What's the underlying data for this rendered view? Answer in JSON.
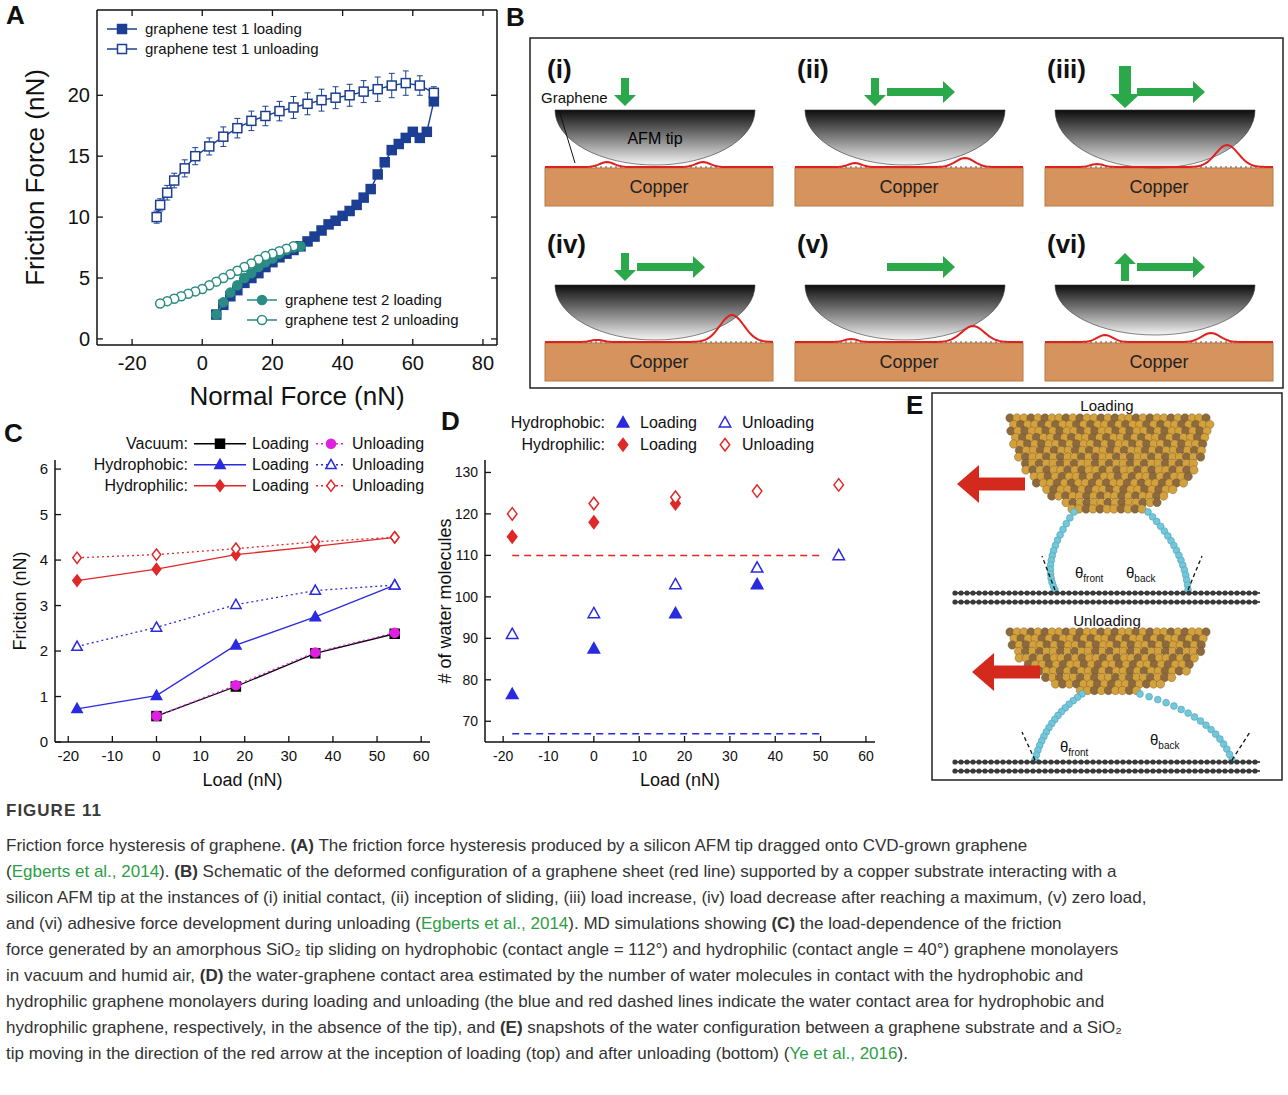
{
  "chart_data": [
    {
      "panel": "A",
      "type": "line",
      "x_label": "Normal Force (nN)",
      "y_label": "Friction Force (nN)",
      "xlim": [
        -30,
        84
      ],
      "xticks": [
        -20,
        0,
        20,
        40,
        60,
        80
      ],
      "ylim": [
        -0.5,
        27
      ],
      "yticks": [
        0,
        5,
        10,
        15,
        20
      ],
      "legend": "upper left",
      "series": [
        {
          "name": "graphene test 1 loading",
          "color": "#1c3f94",
          "marker": "square",
          "line_style": "solid",
          "x": [
            4,
            6,
            8,
            10,
            12,
            14,
            16,
            18,
            20,
            22,
            24,
            26,
            28,
            30,
            32,
            34,
            36,
            38,
            40,
            42,
            44,
            46,
            48,
            50,
            52,
            54,
            56,
            58,
            60,
            62,
            64,
            66
          ],
          "values": [
            2.0,
            2.8,
            3.5,
            4.0,
            4.6,
            5.0,
            5.4,
            5.9,
            6.3,
            6.7,
            7.0,
            7.3,
            7.6,
            8.0,
            8.4,
            8.9,
            9.4,
            9.7,
            10.1,
            10.5,
            11.0,
            11.6,
            12.3,
            13.5,
            14.5,
            15.5,
            16.0,
            16.5,
            17.0,
            16.5,
            17.0,
            19.5
          ]
        },
        {
          "name": "graphene test 1 unloading",
          "color": "#1c3f94",
          "marker": "square-open",
          "line_style": "solid",
          "x": [
            66,
            62,
            58,
            54,
            50,
            46,
            42,
            38,
            34,
            30,
            26,
            22,
            18,
            14,
            10,
            6,
            2,
            -2,
            -5,
            -8,
            -10,
            -12,
            -13
          ],
          "values": [
            20.2,
            20.8,
            21.0,
            20.8,
            20.5,
            20.3,
            20.0,
            19.8,
            19.6,
            19.3,
            19.0,
            18.7,
            18.3,
            17.9,
            17.3,
            16.6,
            15.8,
            15.0,
            14.0,
            13.0,
            12.0,
            11.0,
            10.0
          ],
          "errors": [
            0.5,
            0.8,
            1.0,
            1.0,
            1.0,
            0.9,
            0.9,
            0.9,
            0.9,
            0.9,
            0.9,
            0.8,
            0.8,
            0.8,
            0.8,
            0.8,
            0.7,
            0.7,
            0.7,
            0.6,
            0.6,
            0.5,
            0.5
          ]
        },
        {
          "name": "graphene test 2 loading",
          "color": "#2a8c82",
          "marker": "circle",
          "line_style": "solid",
          "x": [
            4,
            6,
            8,
            10,
            12,
            14,
            16,
            18,
            20,
            22,
            24,
            26,
            28
          ],
          "values": [
            2.0,
            3.0,
            3.8,
            4.4,
            5.0,
            5.4,
            5.9,
            6.3,
            6.6,
            7.0,
            7.3,
            7.5,
            7.6
          ]
        },
        {
          "name": "graphene test 2 unloading",
          "color": "#2a8c82",
          "marker": "circle-open",
          "line_style": "solid",
          "x": [
            26,
            24,
            22,
            20,
            18,
            16,
            14,
            12,
            10,
            8,
            6,
            4,
            2,
            0,
            -2,
            -4,
            -6,
            -8,
            -10,
            -12
          ],
          "values": [
            7.6,
            7.4,
            7.2,
            7.0,
            6.8,
            6.5,
            6.2,
            5.9,
            5.6,
            5.3,
            5.0,
            4.7,
            4.4,
            4.1,
            3.9,
            3.7,
            3.5,
            3.3,
            3.1,
            2.9
          ],
          "errors": [
            0.3,
            0.3,
            0.3,
            0.3,
            0.3,
            0.3,
            0.3,
            0.3,
            0.3,
            0.3,
            0.3,
            0.3,
            0.3,
            0.3,
            0.3,
            0.3,
            0.3,
            0.3,
            0.3,
            0.3
          ]
        }
      ]
    },
    {
      "panel": "C",
      "type": "line",
      "x_label": "Load (nN)",
      "y_label": "Friction (nN)",
      "xlim": [
        -23,
        62
      ],
      "xticks": [
        -20,
        -10,
        0,
        10,
        20,
        30,
        40,
        50,
        60
      ],
      "ylim": [
        0,
        6.2
      ],
      "yticks": [
        0,
        1,
        2,
        3,
        4,
        5,
        6
      ],
      "legend": "upper center",
      "legend_groups": [
        "Vacuum:",
        "Hydrophobic:",
        "Hydrophilic:"
      ],
      "series": [
        {
          "name": "Loading",
          "color": "#000000",
          "marker": "square",
          "line_style": "solid",
          "x": [
            0,
            18,
            36,
            54
          ],
          "values": [
            0.57,
            1.22,
            1.95,
            2.38
          ]
        },
        {
          "name": "Unloading",
          "color": "#e020e0",
          "marker": "circle",
          "line_style": "dotted",
          "x": [
            0,
            18,
            36,
            54
          ],
          "values": [
            0.57,
            1.25,
            1.97,
            2.4
          ]
        },
        {
          "name": "Loading",
          "color": "#2a2ae0",
          "marker": "triangle",
          "line_style": "solid",
          "x": [
            -18,
            0,
            18,
            36,
            54
          ],
          "values": [
            0.73,
            1.02,
            2.13,
            2.75,
            3.45
          ]
        },
        {
          "name": "Unloading",
          "color": "#2a2ae0",
          "marker": "triangle-open",
          "line_style": "dotted",
          "x": [
            -18,
            0,
            18,
            36,
            54
          ],
          "values": [
            2.1,
            2.52,
            3.02,
            3.33,
            3.45
          ]
        },
        {
          "name": "Loading",
          "color": "#e02828",
          "marker": "diamond",
          "line_style": "solid",
          "x": [
            -18,
            0,
            18,
            36,
            54
          ],
          "values": [
            3.55,
            3.8,
            4.12,
            4.3,
            4.5
          ]
        },
        {
          "name": "Unloading",
          "color": "#e02828",
          "marker": "diamond-open",
          "line_style": "dotted",
          "x": [
            -18,
            0,
            18,
            36,
            54
          ],
          "values": [
            4.05,
            4.12,
            4.25,
            4.4,
            4.5
          ]
        }
      ]
    },
    {
      "panel": "D",
      "type": "scatter",
      "x_label": "Load (nN)",
      "y_label": "# of water molecules",
      "xlim": [
        -24,
        62
      ],
      "xticks": [
        -20,
        -10,
        0,
        10,
        20,
        30,
        40,
        50,
        60
      ],
      "ylim": [
        65,
        133
      ],
      "yticks": [
        70,
        80,
        90,
        100,
        110,
        120,
        130
      ],
      "legend": "top",
      "legend_groups": [
        "Hydrophobic:",
        "Hydrophilic:"
      ],
      "series": [
        {
          "name": "Loading",
          "color": "#2a2ae0",
          "marker": "triangle",
          "x": [
            -18,
            0,
            18,
            36
          ],
          "values": [
            76.5,
            87.5,
            96,
            103
          ]
        },
        {
          "name": "Unloading",
          "color": "#2a2ae0",
          "marker": "triangle-open",
          "x": [
            -18,
            0,
            18,
            36,
            54
          ],
          "values": [
            91,
            96,
            103,
            107,
            110
          ]
        },
        {
          "name": "Loading",
          "color": "#e02828",
          "marker": "diamond",
          "x": [
            -18,
            0,
            18
          ],
          "values": [
            114.5,
            118,
            122.5
          ]
        },
        {
          "name": "Unloading",
          "color": "#e02828",
          "marker": "diamond-open",
          "x": [
            -18,
            0,
            18,
            36,
            54
          ],
          "values": [
            120,
            122.5,
            124,
            125.5,
            127
          ]
        },
        {
          "type": "line",
          "color": "#e02828",
          "line_style": "dashed",
          "x": [
            -18,
            50
          ],
          "values": [
            110,
            110
          ]
        },
        {
          "type": "line",
          "color": "#2a2ae0",
          "line_style": "dashed",
          "x": [
            -18,
            50
          ],
          "values": [
            67,
            67
          ]
        }
      ]
    }
  ],
  "diagram_b": {
    "panel": "B",
    "graphene_label": "Graphene",
    "tip_label": "AFM tip",
    "substrate_label": "Copper",
    "steps": [
      "(i)",
      "(ii)",
      "(iii)",
      "(iv)",
      "(v)",
      "(vi)"
    ]
  },
  "diagram_e": {
    "panel": "E",
    "states": [
      "Loading",
      "Unloading"
    ],
    "angle_symbol": "θ",
    "angle_front": "front",
    "angle_back": "back"
  },
  "caption": {
    "label": "FIGURE 11",
    "lines": [
      "Friction force hysteresis of graphene. (A) The friction force hysteresis produced by a silicon AFM tip dragged onto CVD-grown graphene",
      "(Egberts et al., 2014). (B) Schematic of the deformed configuration of a graphene sheet (red line) supported by a copper substrate interacting with a",
      "silicon AFM tip at the instances of (i) initial contact, (ii) inception of sliding, (iii) load increase, (iv) load decrease after reaching a maximum, (v) zero load,",
      "and (vi) adhesive force development during unloading (Egberts et al., 2014). MD simulations showing (C) the load-dependence of the friction",
      "force generated by an amorphous SiO₂ tip sliding on hydrophobic (contact angle = 112°) and hydrophilic (contact angle = 40°) graphene monolayers",
      "in vacuum and humid air, (D) the water-graphene contact area estimated by the number of water molecules in contact with the hydrophobic and",
      "hydrophilic graphene monolayers during loading and unloading (the blue and red dashed lines indicate the water contact area for hydrophobic and",
      "hydrophilic graphene, respectively, in the absence of the tip), and (E) snapshots of the water configuration between a graphene substrate and a SiO₂",
      "tip moving in the direction of the red arrow at the inception of loading (top) and after unloading (bottom) (Ye et al., 2016)."
    ]
  }
}
